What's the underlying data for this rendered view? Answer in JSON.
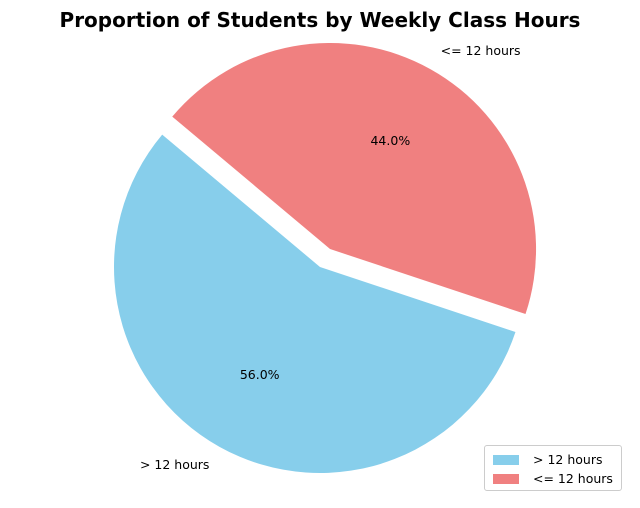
{
  "chart_data": {
    "type": "pie",
    "title": "Proportion of Students by Weekly Class Hours",
    "categories": [
      "> 12 hours",
      "<= 12 hours"
    ],
    "values": [
      56.0,
      44.0
    ],
    "percent_labels": [
      "56.0%",
      "44.0%"
    ],
    "colors": [
      "#87CEEB",
      "#F08080"
    ],
    "explode": [
      0,
      0.1
    ],
    "start_angle_deg": 140,
    "legend": {
      "position": "lower-right",
      "entries": [
        "> 12 hours",
        "<= 12 hours"
      ]
    }
  }
}
